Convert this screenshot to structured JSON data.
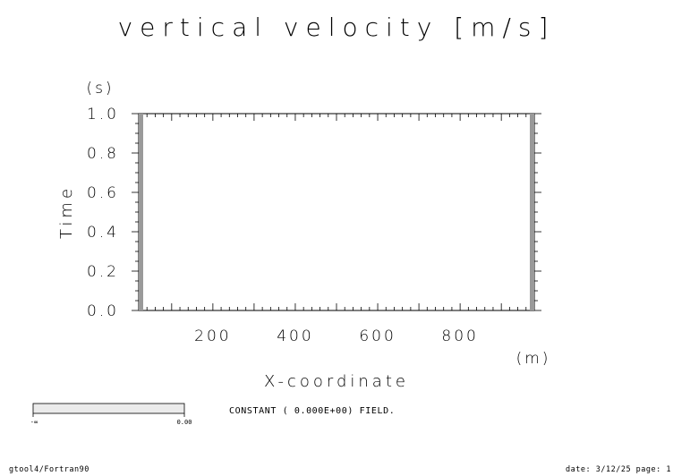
{
  "chart_data": {
    "type": "heatmap",
    "title": "vertical velocity [m/s]",
    "xlabel": "X-coordinate",
    "x_unit": "(m)",
    "ylabel": "Time",
    "y_unit": "(s)",
    "xlim": [
      20,
      980
    ],
    "ylim": [
      0.0,
      1.0
    ],
    "x_major_ticks": [
      100,
      200,
      300,
      400,
      500,
      600,
      700,
      800,
      900
    ],
    "x_tick_labels": [
      {
        "value": 200,
        "label": "200"
      },
      {
        "value": 400,
        "label": "400"
      },
      {
        "value": 600,
        "label": "600"
      },
      {
        "value": 800,
        "label": "800"
      }
    ],
    "y_tick_labels": [
      {
        "value": 0.0,
        "label": "0.0"
      },
      {
        "value": 0.2,
        "label": "0.2"
      },
      {
        "value": 0.4,
        "label": "0.4"
      },
      {
        "value": 0.6,
        "label": "0.6"
      },
      {
        "value": 0.8,
        "label": "0.8"
      },
      {
        "value": 1.0,
        "label": "1.0"
      }
    ],
    "field_value": 0.0,
    "annotation": "CONSTANT ( 0.000E+00) FIELD.",
    "colorbar": {
      "min_label": "-∞",
      "max_label": "0.00"
    }
  },
  "footer": {
    "left": "gtool4/Fortran90",
    "right": "date: 3/12/25 page: 1"
  }
}
